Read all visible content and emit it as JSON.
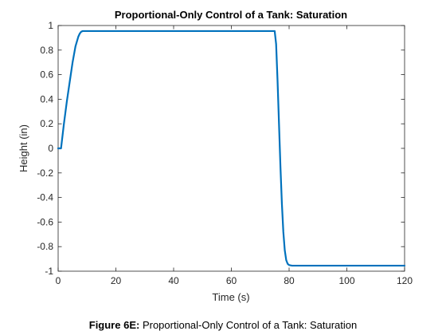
{
  "chart_data": {
    "type": "line",
    "title": "Proportional-Only Control of a Tank: Saturation",
    "xlabel": "Time (s)",
    "ylabel": "Height (in)",
    "xlim": [
      0,
      120
    ],
    "ylim": [
      -1,
      1
    ],
    "xticks": [
      0,
      20,
      40,
      60,
      80,
      100,
      120
    ],
    "yticks": [
      -1,
      -0.8,
      -0.6,
      -0.4,
      -0.2,
      0,
      0.2,
      0.4,
      0.6,
      0.8,
      1
    ],
    "xtick_labels": [
      "0",
      "20",
      "40",
      "60",
      "80",
      "100",
      "120"
    ],
    "ytick_labels": [
      "-1",
      "-0.8",
      "-0.6",
      "-0.4",
      "-0.2",
      "0",
      "0.2",
      "0.4",
      "0.6",
      "0.8",
      "1"
    ],
    "grid": false,
    "line_color": "#0072BD",
    "series": [
      {
        "x": [
          0,
          1,
          2,
          3,
          4,
          5,
          6,
          7,
          7.5,
          8,
          8.5,
          9,
          9.5,
          10,
          11,
          12,
          20,
          40,
          60,
          75,
          75.5,
          76,
          76.5,
          77,
          77.5,
          78,
          78.5,
          79,
          79.5,
          80,
          81,
          82,
          85,
          100,
          120
        ],
        "y": [
          0,
          0,
          0.2,
          0.38,
          0.54,
          0.7,
          0.83,
          0.91,
          0.935,
          0.95,
          0.955,
          0.955,
          0.955,
          0.955,
          0.955,
          0.955,
          0.955,
          0.955,
          0.955,
          0.955,
          0.85,
          0.55,
          0.2,
          -0.15,
          -0.45,
          -0.68,
          -0.83,
          -0.91,
          -0.94,
          -0.95,
          -0.955,
          -0.955,
          -0.955,
          -0.955,
          -0.955
        ]
      }
    ]
  },
  "caption": {
    "bold": "Figure 6E:",
    "text": " Proportional-Only Control of a Tank: Saturation"
  }
}
